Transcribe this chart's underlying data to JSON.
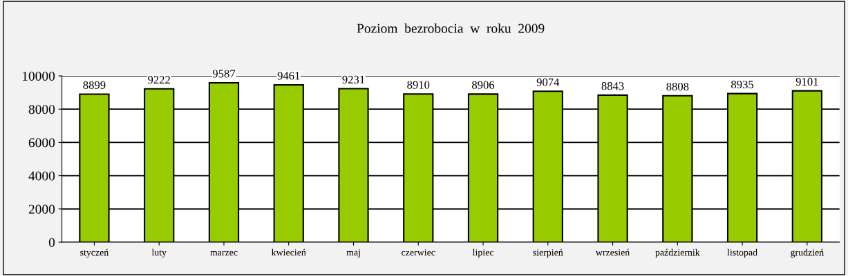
{
  "chart_data": {
    "type": "bar",
    "title": "Poziom  bezrobocia  w  roku  2009",
    "categories": [
      "styczeń",
      "luty",
      "marzec",
      "kwiecień",
      "maj",
      "czerwiec",
      "lipiec",
      "sierpień",
      "wrzesień",
      "październik",
      "listopad",
      "grudzień"
    ],
    "values": [
      8899,
      9222,
      9587,
      9461,
      9231,
      8910,
      8906,
      9074,
      8843,
      8808,
      8935,
      9101
    ],
    "color": "#99cc00",
    "ylim": [
      0,
      10000
    ],
    "yticks": [
      0,
      2000,
      4000,
      6000,
      8000,
      10000
    ],
    "grid": "y",
    "data_labels": true
  }
}
